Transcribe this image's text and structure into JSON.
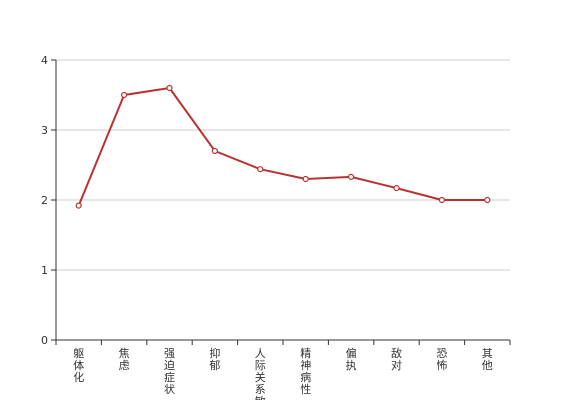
{
  "chart_data": {
    "type": "line",
    "title": "",
    "xlabel": "",
    "ylabel": "",
    "categories": [
      "躯体化",
      "焦虑",
      "强迫症状",
      "抑郁",
      "人际关系敏感",
      "精神病性",
      "偏执",
      "敌对",
      "恐怖",
      "其他"
    ],
    "series": [
      {
        "values": [
          1.92,
          3.5,
          3.6,
          2.7,
          2.44,
          2.3,
          2.33,
          2.17,
          2.0,
          2.0
        ]
      }
    ],
    "ylim": [
      0,
      4
    ],
    "yticks": [
      "0",
      "1",
      "2",
      "3",
      "4"
    ],
    "grid": true,
    "colors": {
      "line": "#b83232",
      "marker_fill": "#ffffff",
      "grid": "#cccccc",
      "axis": "#333333"
    }
  }
}
